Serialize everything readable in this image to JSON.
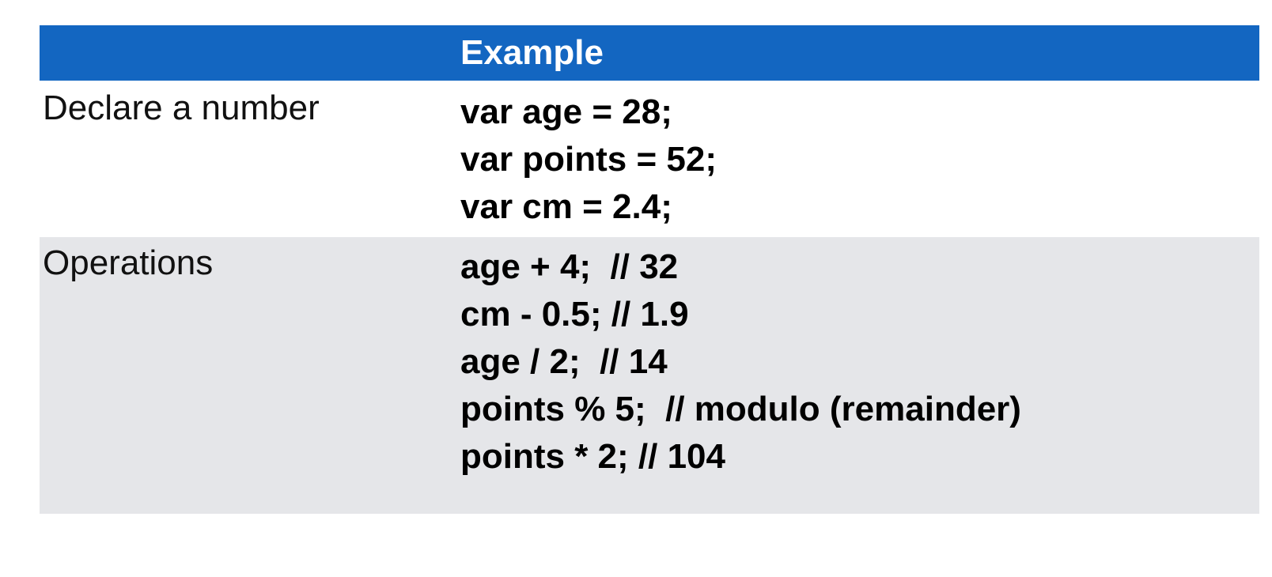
{
  "header": {
    "title": "Example"
  },
  "rows": [
    {
      "label": "Declare a number",
      "lines": [
        "var age = 28;",
        "var points = 52;",
        "var cm = 2.4;"
      ]
    },
    {
      "label": "Operations",
      "lines": [
        "age + 4;  // 32",
        "cm - 0.5; // 1.9",
        "age / 2;  // 14",
        "points % 5;  // modulo (remainder)",
        "points * 2; // 104"
      ]
    }
  ],
  "colors": {
    "header_bg": "#1366c1",
    "header_text": "#ffffff",
    "row_alt_bg": "#e5e6e9"
  }
}
